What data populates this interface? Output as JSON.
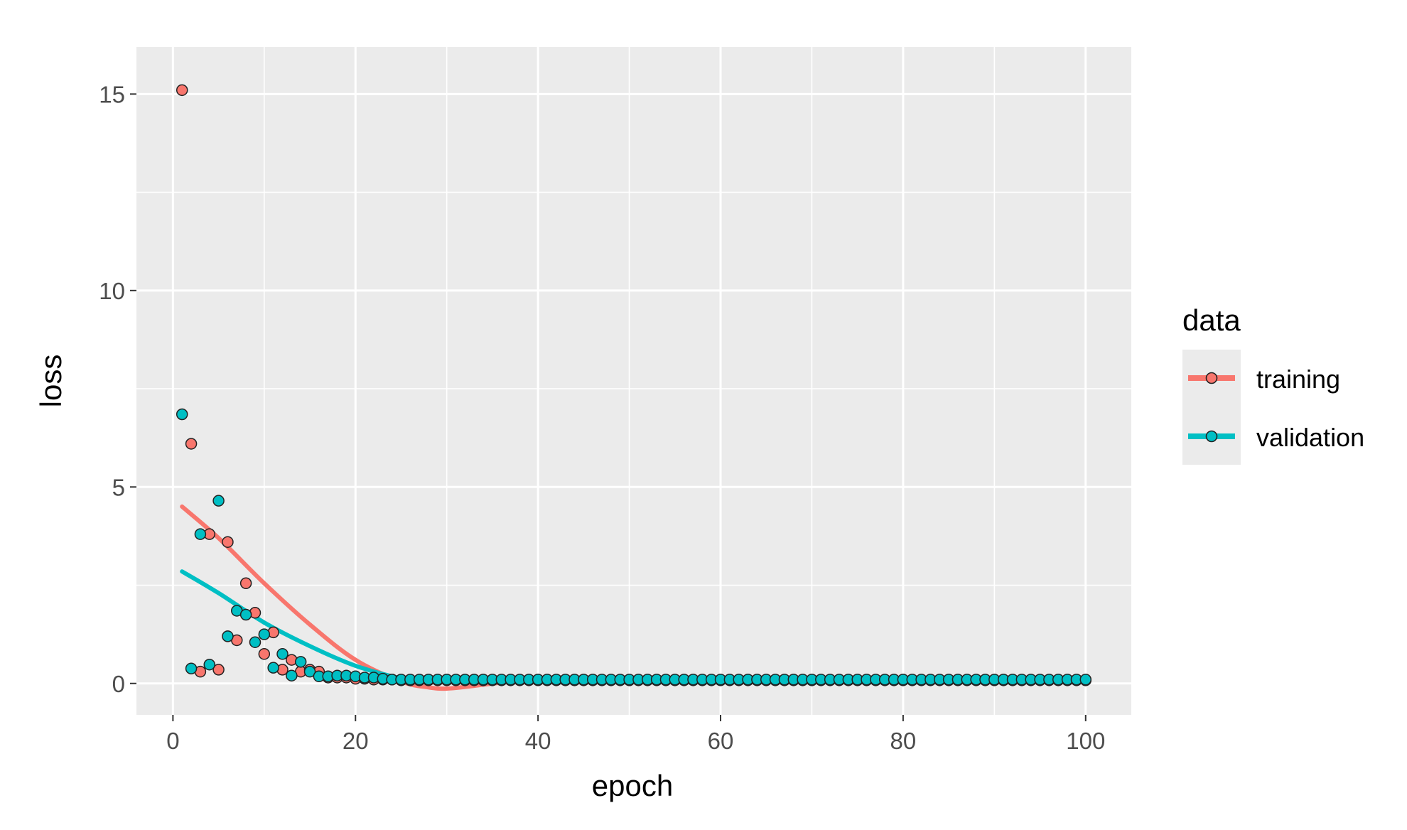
{
  "chart_data": {
    "type": "scatter",
    "xlabel": "epoch",
    "ylabel": "loss",
    "xlim": [
      -4,
      105
    ],
    "ylim": [
      -0.8,
      16.2
    ],
    "x_ticks": [
      0,
      20,
      40,
      60,
      80,
      100
    ],
    "x_tick_labels": [
      "0",
      "20",
      "40",
      "60",
      "80",
      "100"
    ],
    "y_ticks": [
      0,
      5,
      10,
      15
    ],
    "y_tick_labels": [
      "0",
      "5",
      "10",
      "15"
    ],
    "grid": true,
    "legend": {
      "title": "data",
      "position": "right",
      "entries": [
        "training",
        "validation"
      ]
    },
    "series": [
      {
        "name": "training",
        "color": "#f8766d",
        "points": [
          [
            1,
            15.1
          ],
          [
            2,
            6.1
          ],
          [
            3,
            0.3
          ],
          [
            4,
            3.8
          ],
          [
            5,
            0.35
          ],
          [
            6,
            3.6
          ],
          [
            7,
            1.1
          ],
          [
            8,
            2.55
          ],
          [
            9,
            1.8
          ],
          [
            10,
            0.75
          ],
          [
            11,
            1.3
          ],
          [
            12,
            0.35
          ],
          [
            13,
            0.6
          ],
          [
            14,
            0.3
          ],
          [
            15,
            0.35
          ],
          [
            16,
            0.3
          ],
          [
            17,
            0.15
          ],
          [
            18,
            0.15
          ],
          [
            19,
            0.15
          ],
          [
            20,
            0.12
          ],
          [
            21,
            0.12
          ],
          [
            22,
            0.1
          ],
          [
            23,
            0.1
          ],
          [
            24,
            0.1
          ],
          [
            25,
            0.08
          ]
        ],
        "tail": {
          "from": 26,
          "to": 100,
          "value": 0.08
        },
        "smooth": [
          [
            1,
            4.5
          ],
          [
            5,
            3.7
          ],
          [
            10,
            2.55
          ],
          [
            15,
            1.5
          ],
          [
            20,
            0.6
          ],
          [
            25,
            0.05
          ],
          [
            28,
            -0.1
          ],
          [
            30,
            -0.13
          ],
          [
            33,
            -0.06
          ],
          [
            36,
            0.02
          ],
          [
            40,
            0.05
          ],
          [
            100,
            0.05
          ]
        ]
      },
      {
        "name": "validation",
        "color": "#00bfc4",
        "points": [
          [
            1,
            6.85
          ],
          [
            2,
            0.38
          ],
          [
            3,
            3.8
          ],
          [
            4,
            0.48
          ],
          [
            5,
            4.65
          ],
          [
            6,
            1.2
          ],
          [
            7,
            1.85
          ],
          [
            8,
            1.75
          ],
          [
            9,
            1.05
          ],
          [
            10,
            1.25
          ],
          [
            11,
            0.4
          ],
          [
            12,
            0.75
          ],
          [
            13,
            0.2
          ],
          [
            14,
            0.55
          ],
          [
            15,
            0.3
          ],
          [
            16,
            0.18
          ],
          [
            17,
            0.18
          ],
          [
            18,
            0.2
          ],
          [
            19,
            0.2
          ],
          [
            20,
            0.18
          ],
          [
            21,
            0.15
          ],
          [
            22,
            0.15
          ],
          [
            23,
            0.12
          ],
          [
            24,
            0.1
          ],
          [
            25,
            0.1
          ]
        ],
        "tail": {
          "from": 26,
          "to": 100,
          "value": 0.1
        },
        "smooth": [
          [
            1,
            2.85
          ],
          [
            5,
            2.3
          ],
          [
            10,
            1.55
          ],
          [
            15,
            0.95
          ],
          [
            20,
            0.45
          ],
          [
            25,
            0.13
          ],
          [
            28,
            0.06
          ],
          [
            32,
            0.07
          ],
          [
            40,
            0.08
          ],
          [
            100,
            0.08
          ]
        ]
      }
    ]
  }
}
